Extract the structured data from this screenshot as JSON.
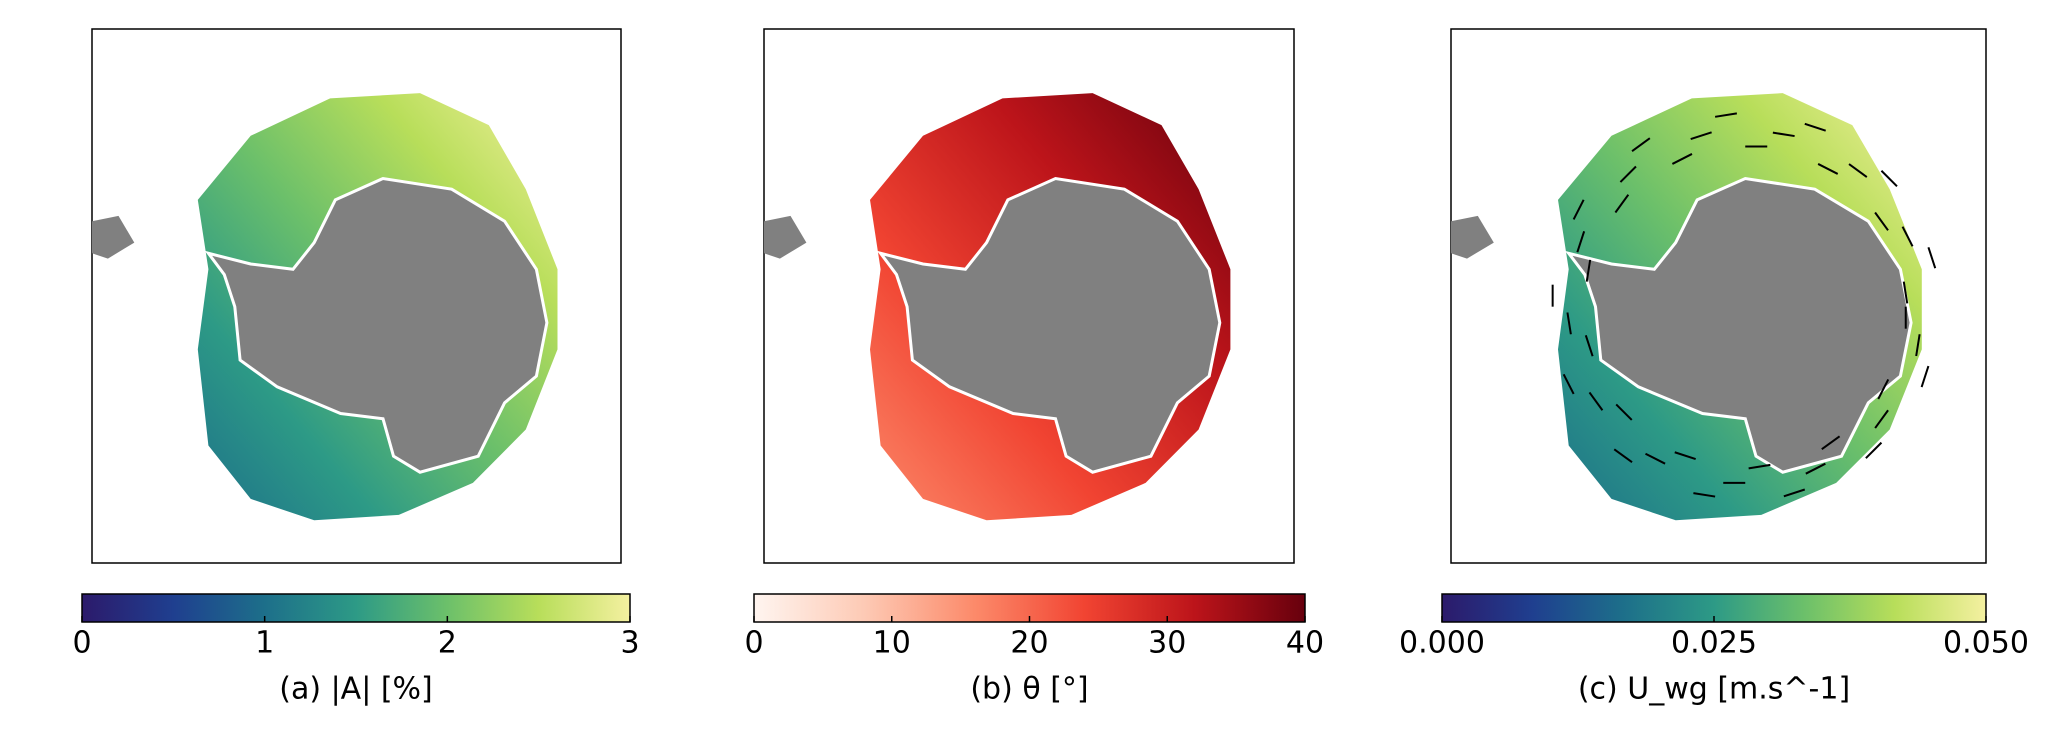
{
  "chart_data": [
    {
      "type": "colormap",
      "label": "(a)  |A| [%]",
      "xlim": [
        0,
        3
      ],
      "xticks": [
        0,
        1,
        2,
        3
      ],
      "colors": [
        "#2c1a6b",
        "#1f3f8f",
        "#1d6f8a",
        "#2d9a86",
        "#6cc06a",
        "#b8de5a",
        "#f4f0a0"
      ]
    },
    {
      "type": "colormap",
      "label": "(b)  θ [°]",
      "xlim": [
        0,
        40
      ],
      "xticks": [
        0,
        10,
        20,
        30,
        40
      ],
      "colors": [
        "#fff5f0",
        "#fdcab5",
        "#fc8a6a",
        "#f14432",
        "#bc141a",
        "#67000d"
      ]
    },
    {
      "type": "colormap",
      "label": "(c)  U_wg [m.s^-1]",
      "xlim": [
        0,
        0.05
      ],
      "xticks": [
        {
          "value": 0,
          "label": "0.000"
        },
        {
          "value": 0.025,
          "label": "0.025"
        },
        {
          "value": 0.05,
          "label": "0.050"
        }
      ],
      "colors": [
        "#2c1a6b",
        "#1f3f8f",
        "#1d6f8a",
        "#2d9a86",
        "#6cc06a",
        "#b8de5a",
        "#f4f0a0"
      ]
    }
  ]
}
